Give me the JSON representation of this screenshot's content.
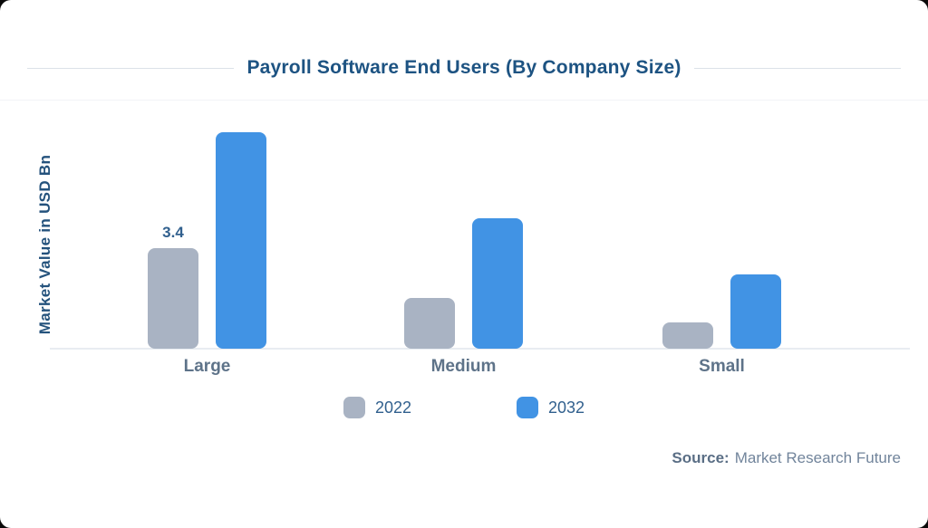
{
  "title": "Payroll Software End Users (By Company Size)",
  "chart_data": {
    "type": "bar",
    "title": "Payroll Software End Users (By Company Size)",
    "xlabel": "",
    "ylabel": "Market Value in USD Bn",
    "categories": [
      "Large",
      "Medium",
      "Small"
    ],
    "series": [
      {
        "name": "2022",
        "color": "#a9b3c3",
        "values": [
          3.4,
          1.7,
          0.9
        ]
      },
      {
        "name": "2032",
        "color": "#4193e4",
        "values": [
          7.3,
          4.4,
          2.5
        ]
      }
    ],
    "data_labels": [
      {
        "series": "2022",
        "category": "Large",
        "text": "3.4"
      }
    ],
    "ylim": [
      0,
      7.8
    ],
    "grid": false,
    "legend_position": "bottom"
  },
  "source": {
    "label": "Source:",
    "value": "Market Research Future"
  },
  "colors": {
    "title": "#1d5382",
    "value_label": "#31608e",
    "category_label": "#5e7389",
    "baseline": "#e8ecf1",
    "rule": "#dce1e8",
    "series_2022": "#a9b3c3",
    "series_2032": "#4193e4"
  }
}
